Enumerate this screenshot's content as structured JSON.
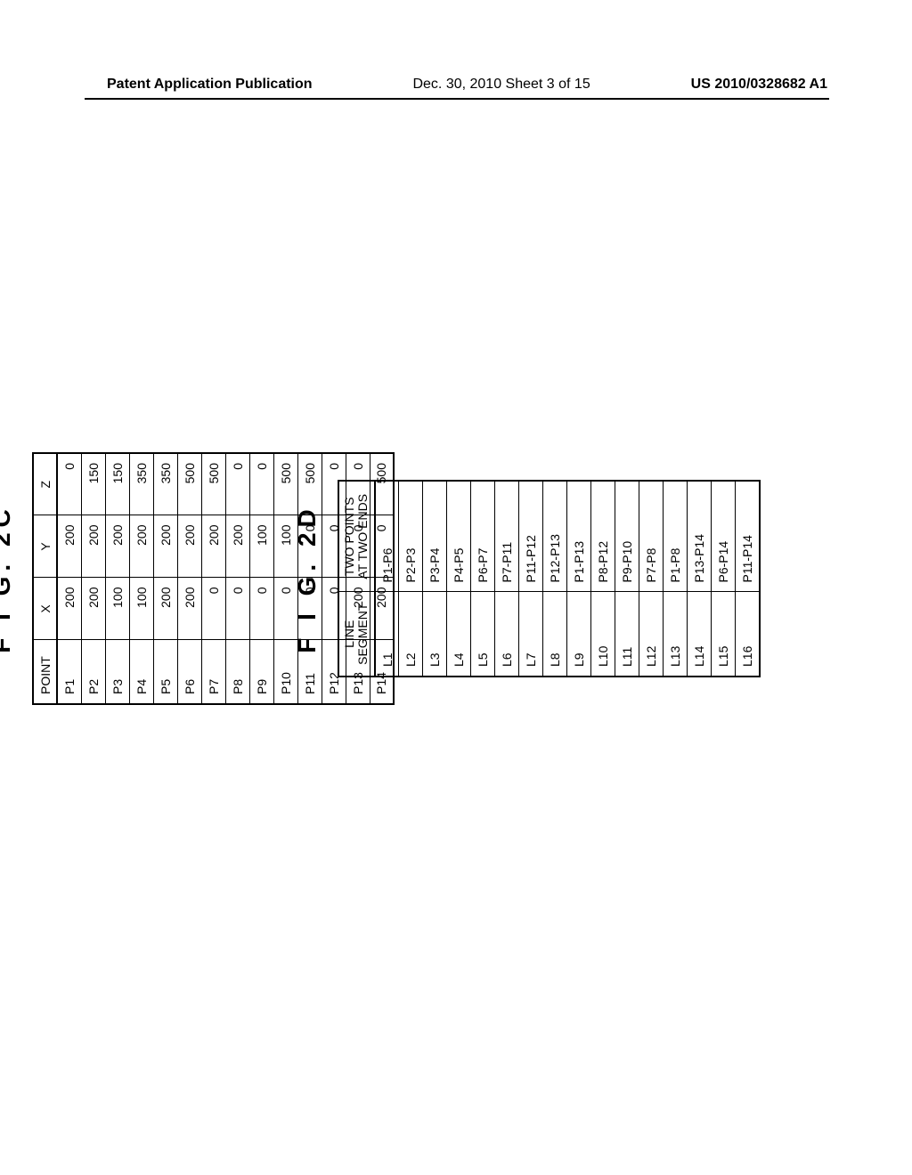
{
  "header": {
    "left": "Patent Application Publication",
    "center": "Dec. 30, 2010  Sheet 3 of 15",
    "right": "US 2010/0328682 A1"
  },
  "figures": {
    "fig2c": {
      "title": "F I G.  2C",
      "columns": [
        "POINT",
        "X",
        "Y",
        "Z"
      ],
      "rows": [
        [
          "P1",
          "200",
          "200",
          "0"
        ],
        [
          "P2",
          "200",
          "200",
          "150"
        ],
        [
          "P3",
          "100",
          "200",
          "150"
        ],
        [
          "P4",
          "100",
          "200",
          "350"
        ],
        [
          "P5",
          "200",
          "200",
          "350"
        ],
        [
          "P6",
          "200",
          "200",
          "500"
        ],
        [
          "P7",
          "0",
          "200",
          "500"
        ],
        [
          "P8",
          "0",
          "200",
          "0"
        ],
        [
          "P9",
          "0",
          "100",
          "0"
        ],
        [
          "P10",
          "0",
          "100",
          "500"
        ],
        [
          "P11",
          "0",
          "0",
          "500"
        ],
        [
          "P12",
          "0",
          "0",
          "0"
        ],
        [
          "P13",
          "200",
          "0",
          "0"
        ],
        [
          "P14",
          "200",
          "0",
          "500"
        ]
      ]
    },
    "fig2d": {
      "title": "F I G.  2D",
      "columns": [
        "LINE\nSEGMENT",
        "TWO POINTS\nAT TWO ENDS"
      ],
      "rows": [
        [
          "L1",
          "P1-P6"
        ],
        [
          "L2",
          "P2-P3"
        ],
        [
          "L3",
          "P3-P4"
        ],
        [
          "L4",
          "P4-P5"
        ],
        [
          "L5",
          "P6-P7"
        ],
        [
          "L6",
          "P7-P11"
        ],
        [
          "L7",
          "P11-P12"
        ],
        [
          "L8",
          "P12-P13"
        ],
        [
          "L9",
          "P1-P13"
        ],
        [
          "L10",
          "P8-P12"
        ],
        [
          "L11",
          "P9-P10"
        ],
        [
          "L12",
          "P7-P8"
        ],
        [
          "L13",
          "P1-P8"
        ],
        [
          "L14",
          "P13-P14"
        ],
        [
          "L15",
          "P6-P14"
        ],
        [
          "L16",
          "P11-P14"
        ]
      ]
    }
  },
  "style": {
    "page_background": "#ffffff",
    "text_color": "#000000",
    "border_color": "#000000",
    "figure_title_fontsize": 28,
    "figure_title_weight": 900,
    "table_fontsize": 14,
    "rotation_deg": -90
  }
}
